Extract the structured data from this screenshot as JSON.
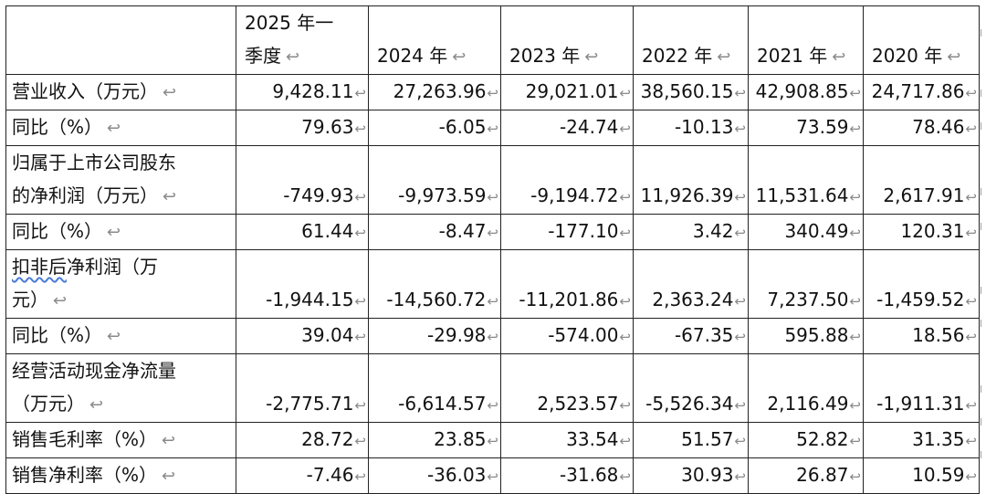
{
  "markers": {
    "cell_end": "↩",
    "return": "↩"
  },
  "header": {
    "corner": "",
    "col1_line1": "2025 年一",
    "col1_line2": "季度",
    "col2": "2024 年",
    "col3": "2023 年",
    "col4": "2022 年",
    "col5": "2021 年",
    "col6": "2020 年"
  },
  "rows": [
    {
      "label": "营业收入（万元）",
      "values": [
        "9,428.11",
        "27,263.96",
        "29,021.01",
        "38,560.15",
        "42,908.85",
        "24,717.86"
      ]
    },
    {
      "label": "同比（%）",
      "values": [
        "79.63",
        "-6.05",
        "-24.74",
        "-10.13",
        "73.59",
        "78.46"
      ]
    },
    {
      "label_line1": "归属于上市公司股东",
      "label_line2": "的净利润（万元）",
      "values": [
        "-749.93",
        "-9,973.59",
        "-9,194.72",
        "11,926.39",
        "11,531.64",
        "2,617.91"
      ]
    },
    {
      "label": "同比（%）",
      "values": [
        "61.44",
        "-8.47",
        "-177.10",
        "3.42",
        "340.49",
        "120.31"
      ]
    },
    {
      "label_line1_underlined": "扣非后",
      "label_line1_rest": "净利润（万",
      "label_line2": "元）",
      "values": [
        "-1,944.15",
        "-14,560.72",
        "-11,201.86",
        "2,363.24",
        "7,237.50",
        "-1,459.52"
      ]
    },
    {
      "label": "同比（%）",
      "values": [
        "39.04",
        "-29.98",
        "-574.00",
        "-67.35",
        "595.88",
        "18.56"
      ]
    },
    {
      "label_line1": "经营活动现金净流量",
      "label_line2": "（万元）",
      "values": [
        "-2,775.71",
        "-6,614.57",
        "2,523.57",
        "-5,526.34",
        "2,116.49",
        "-1,911.31"
      ]
    },
    {
      "label": "销售毛利率（%）",
      "values": [
        "28.72",
        "23.85",
        "33.54",
        "51.57",
        "52.82",
        "31.35"
      ]
    },
    {
      "label": "销售净利率（%）",
      "values": [
        "-7.46",
        "-36.03",
        "-31.68",
        "30.93",
        "26.87",
        "10.59"
      ]
    }
  ]
}
